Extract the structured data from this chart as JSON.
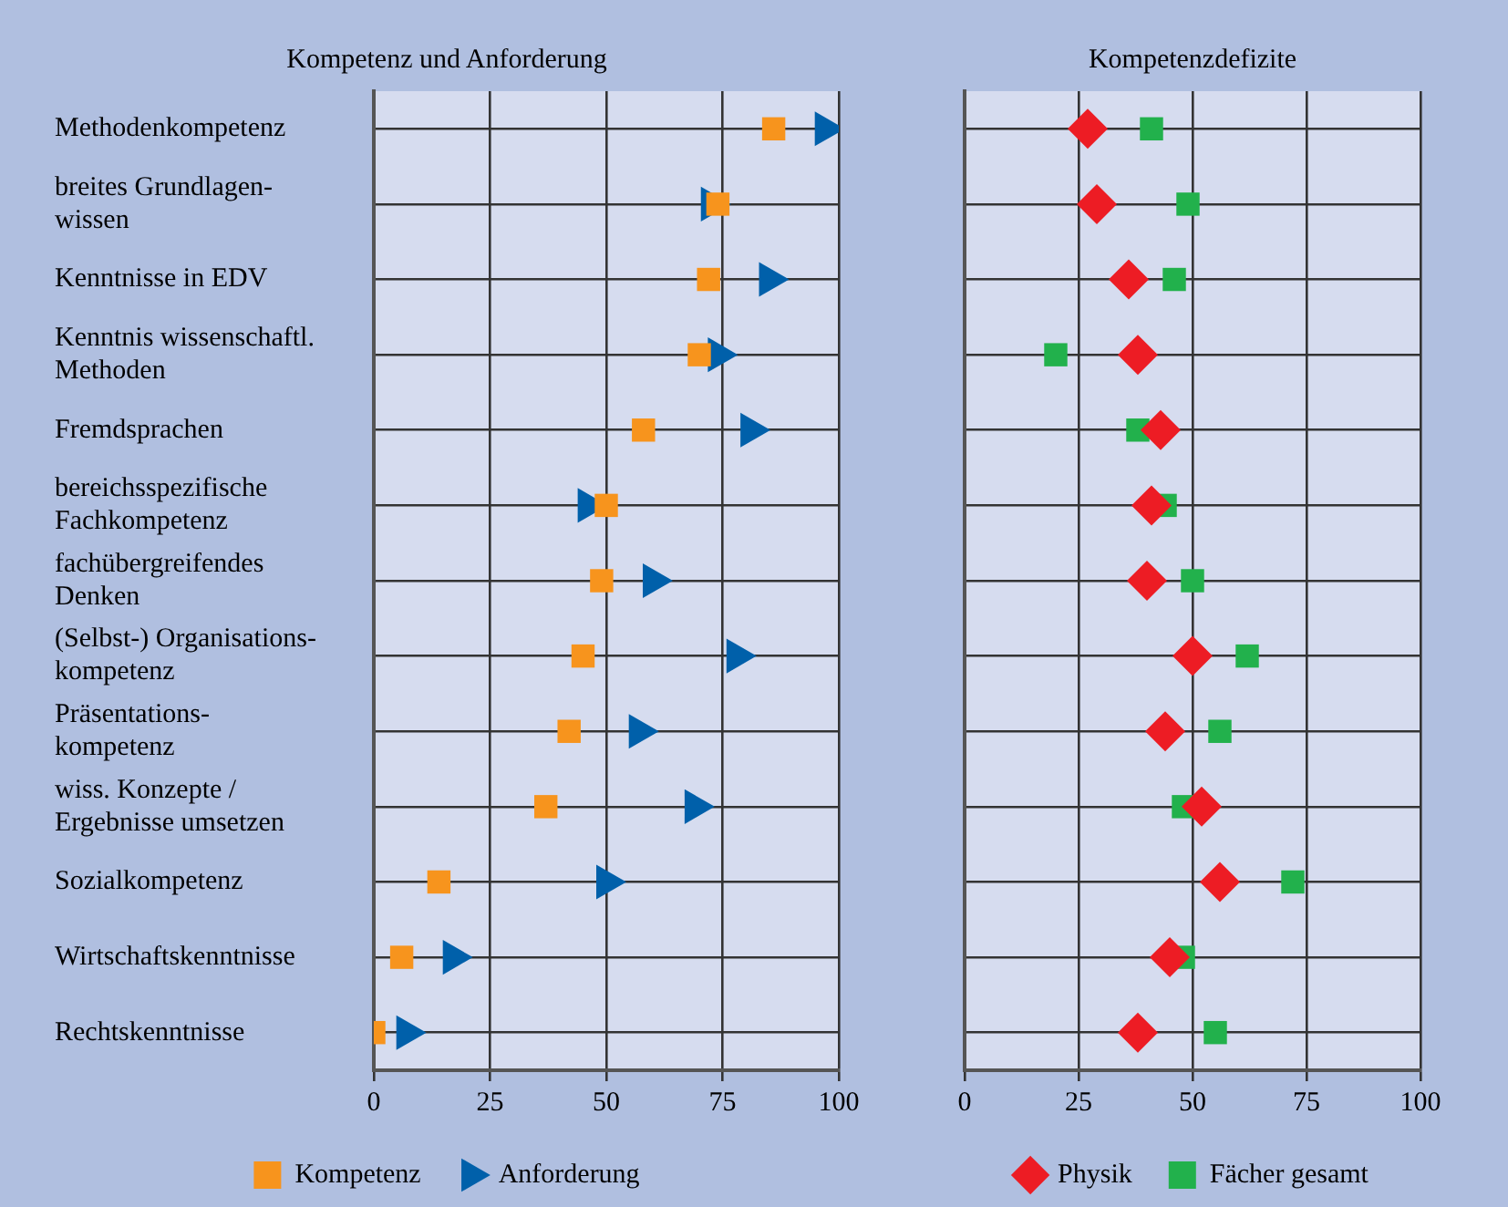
{
  "chart_data": [
    {
      "type": "scatter",
      "title": "Kompetenz und Anforderung",
      "categories": [
        "Methodenkompetenz",
        "breites Grundlagen-\nwissen",
        "Kenntnisse in EDV",
        "Kenntnis wissenschaftl.\nMethoden",
        "Fremdsprachen",
        "bereichsspezifische\nFachkompetenz",
        "fachübergreifendes\nDenken",
        "(Selbst-) Organisations-\nkompetenz",
        "Präsentations-\nkompetenz",
        "wiss. Konzepte /\nErgebnisse umsetzen",
        "Sozialkompetenz",
        "Wirtschaftskenntnisse",
        "Rechtskenntnisse"
      ],
      "series": [
        {
          "name": "Kompetenz",
          "color": "#f7941d",
          "marker": "square",
          "values": [
            86,
            74,
            72,
            70,
            58,
            50,
            49,
            45,
            42,
            37,
            14,
            6,
            0
          ]
        },
        {
          "name": "Anforderung",
          "color": "#0060aa",
          "marker": "triangle",
          "values": [
            97,
            72.5,
            85,
            74,
            81,
            46,
            60,
            78,
            57,
            69,
            50,
            17,
            7
          ]
        }
      ],
      "orientation": "horizontal",
      "xlim": [
        0,
        100
      ],
      "xticks": [
        0,
        25,
        50,
        75,
        100
      ],
      "grid": true,
      "legend": "bottom"
    },
    {
      "type": "scatter",
      "title": "Kompetenzdefizite",
      "categories": [
        null,
        null,
        null,
        null,
        null,
        null,
        null,
        null,
        null,
        null,
        null,
        null,
        null
      ],
      "series": [
        {
          "name": "Physik",
          "color": "#ed1c24",
          "marker": "diamond",
          "values": [
            27,
            29,
            36,
            38,
            43,
            41,
            40,
            50,
            44,
            52,
            56,
            45,
            38
          ]
        },
        {
          "name": "Fächer gesamt",
          "color": "#22b14c",
          "marker": "square",
          "values": [
            41,
            49,
            46,
            20,
            38,
            44,
            50,
            62,
            56,
            48,
            72,
            48,
            55
          ]
        }
      ],
      "orientation": "horizontal",
      "xlim": [
        0,
        100
      ],
      "xticks": [
        0,
        25,
        50,
        75,
        100
      ],
      "grid": true,
      "legend": "bottom",
      "tick_labels": "x"
    }
  ]
}
